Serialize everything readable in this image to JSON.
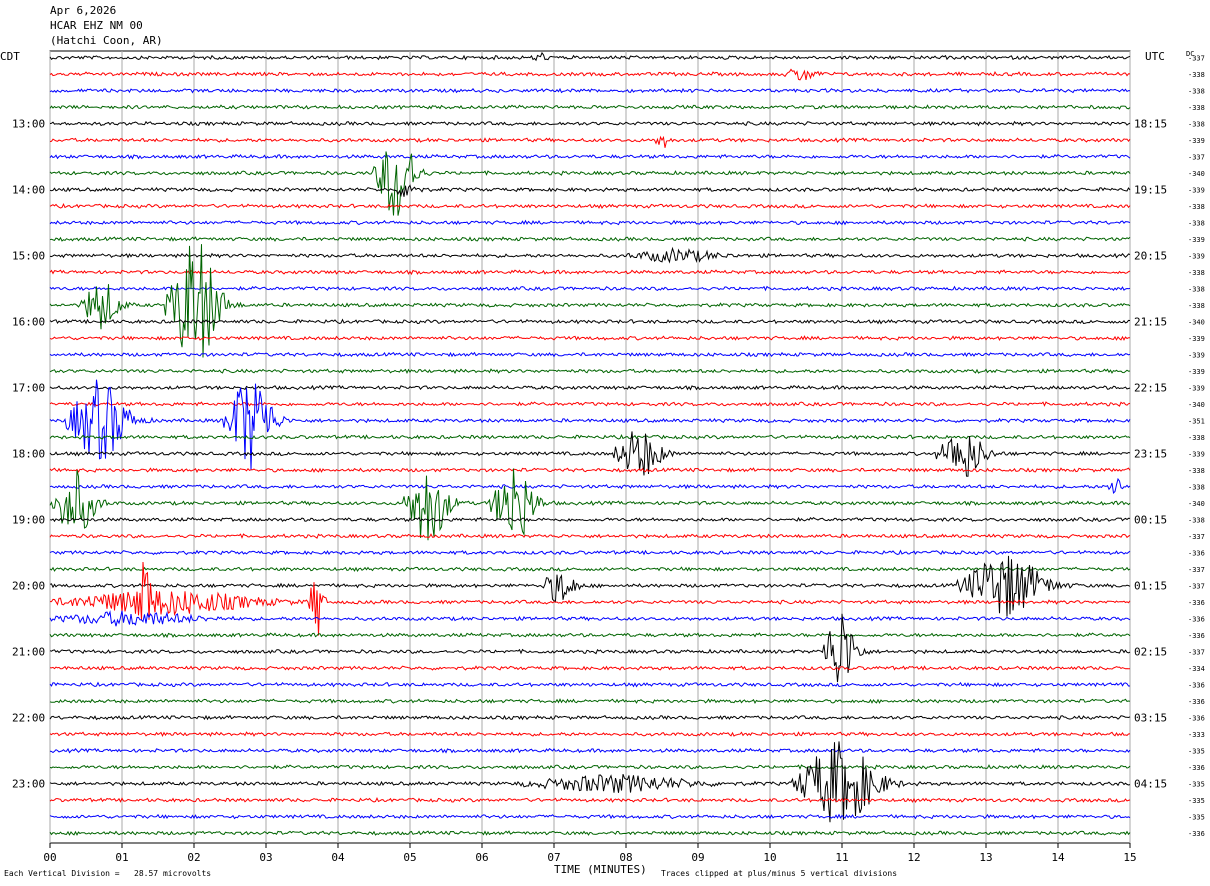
{
  "header": {
    "date": "Apr 6,2026",
    "channel": "HCAR EHZ NM 00",
    "location": "(Hatchi Coon, AR)"
  },
  "chart_data": {
    "type": "line",
    "subtype": "helicorder",
    "left_zone_label": "CDT",
    "right_zone_label": "UTC",
    "dc_header": "DC",
    "xlabel": "TIME (MINUTES)",
    "x_ticks": [
      "00",
      "01",
      "02",
      "03",
      "04",
      "05",
      "06",
      "07",
      "08",
      "09",
      "10",
      "11",
      "12",
      "13",
      "14",
      "15"
    ],
    "xlim": [
      0,
      15
    ],
    "rows_per_hour": 4,
    "trace_colors": [
      "#000000",
      "#ff0000",
      "#0000ff",
      "#006400"
    ],
    "left_time_labels": [
      {
        "row": 4,
        "label": "13:00"
      },
      {
        "row": 8,
        "label": "14:00"
      },
      {
        "row": 12,
        "label": "15:00"
      },
      {
        "row": 16,
        "label": "16:00"
      },
      {
        "row": 20,
        "label": "17:00"
      },
      {
        "row": 24,
        "label": "18:00"
      },
      {
        "row": 28,
        "label": "19:00"
      },
      {
        "row": 32,
        "label": "20:00"
      },
      {
        "row": 36,
        "label": "21:00"
      },
      {
        "row": 40,
        "label": "22:00"
      },
      {
        "row": 44,
        "label": "23:00"
      }
    ],
    "right_time_labels": [
      {
        "row": 4,
        "label": "18:15"
      },
      {
        "row": 8,
        "label": "19:15"
      },
      {
        "row": 12,
        "label": "20:15"
      },
      {
        "row": 16,
        "label": "21:15"
      },
      {
        "row": 20,
        "label": "22:15"
      },
      {
        "row": 24,
        "label": "23:15"
      },
      {
        "row": 28,
        "label": "00:15"
      },
      {
        "row": 32,
        "label": "01:15"
      },
      {
        "row": 36,
        "label": "02:15"
      },
      {
        "row": 40,
        "label": "03:15"
      },
      {
        "row": 44,
        "label": "04:15"
      }
    ],
    "dc_offsets": [
      "-337",
      "-338",
      "-338",
      "-338",
      "-338",
      "-339",
      "-337",
      "-340",
      "-339",
      "-338",
      "-338",
      "-339",
      "-339",
      "-338",
      "-338",
      "-338",
      "-340",
      "-339",
      "-339",
      "-339",
      "-339",
      "-340",
      "-351",
      "-338",
      "-339",
      "-338",
      "-338",
      "-340",
      "-338",
      "-337",
      "-336",
      "-337",
      "-337",
      "-336",
      "-336",
      "-336",
      "-337",
      "-334",
      "-336",
      "-336",
      "-336",
      "-333",
      "-335",
      "-336",
      "-335",
      "-335",
      "-335",
      "-336"
    ],
    "events": [
      {
        "row": 0,
        "start_min": 6.7,
        "end_min": 7.0,
        "amp": 0.6
      },
      {
        "row": 1,
        "start_min": 10.2,
        "end_min": 10.9,
        "amp": 0.8
      },
      {
        "row": 5,
        "start_min": 8.4,
        "end_min": 8.7,
        "amp": 1.0
      },
      {
        "row": 7,
        "start_min": 4.5,
        "end_min": 5.4,
        "amp": 6.0
      },
      {
        "row": 8,
        "start_min": 4.8,
        "end_min": 5.3,
        "amp": 1.2
      },
      {
        "row": 12,
        "start_min": 8.0,
        "end_min": 10.0,
        "amp": 0.7
      },
      {
        "row": 15,
        "start_min": 0.4,
        "end_min": 1.3,
        "amp": 3.0
      },
      {
        "row": 15,
        "start_min": 1.6,
        "end_min": 2.8,
        "amp": 8.0
      },
      {
        "row": 22,
        "start_min": 0.2,
        "end_min": 1.6,
        "amp": 5.0
      },
      {
        "row": 22,
        "start_min": 2.4,
        "end_min": 3.5,
        "amp": 6.0
      },
      {
        "row": 24,
        "start_min": 7.8,
        "end_min": 8.9,
        "amp": 3.0
      },
      {
        "row": 24,
        "start_min": 12.3,
        "end_min": 13.4,
        "amp": 3.0
      },
      {
        "row": 26,
        "start_min": 14.7,
        "end_min": 15.0,
        "amp": 1.5
      },
      {
        "row": 27,
        "start_min": 0.0,
        "end_min": 1.0,
        "amp": 4.0
      },
      {
        "row": 27,
        "start_min": 4.9,
        "end_min": 5.9,
        "amp": 5.0
      },
      {
        "row": 27,
        "start_min": 6.1,
        "end_min": 7.1,
        "amp": 5.0
      },
      {
        "row": 32,
        "start_min": 6.8,
        "end_min": 7.6,
        "amp": 2.0
      },
      {
        "row": 32,
        "start_min": 12.6,
        "end_min": 14.5,
        "amp": 4.0
      },
      {
        "row": 33,
        "start_min": 0.0,
        "end_min": 4.5,
        "amp": 1.5
      },
      {
        "row": 33,
        "start_min": 3.6,
        "end_min": 3.9,
        "amp": 5.0
      },
      {
        "row": 33,
        "start_min": 1.2,
        "end_min": 1.5,
        "amp": 5.0
      },
      {
        "row": 34,
        "start_min": 0.0,
        "end_min": 3.2,
        "amp": 0.8
      },
      {
        "row": 36,
        "start_min": 10.7,
        "end_min": 11.5,
        "amp": 5.0
      },
      {
        "row": 44,
        "start_min": 10.3,
        "end_min": 12.2,
        "amp": 5.0
      },
      {
        "row": 44,
        "start_min": 6.5,
        "end_min": 10.3,
        "amp": 1.0
      }
    ],
    "clip_divisions": 5
  },
  "footer": {
    "division_note": "Each Vertical Division =   28.57 microvolts",
    "clip_note": "Traces clipped at plus/minus 5 vertical divisions"
  }
}
